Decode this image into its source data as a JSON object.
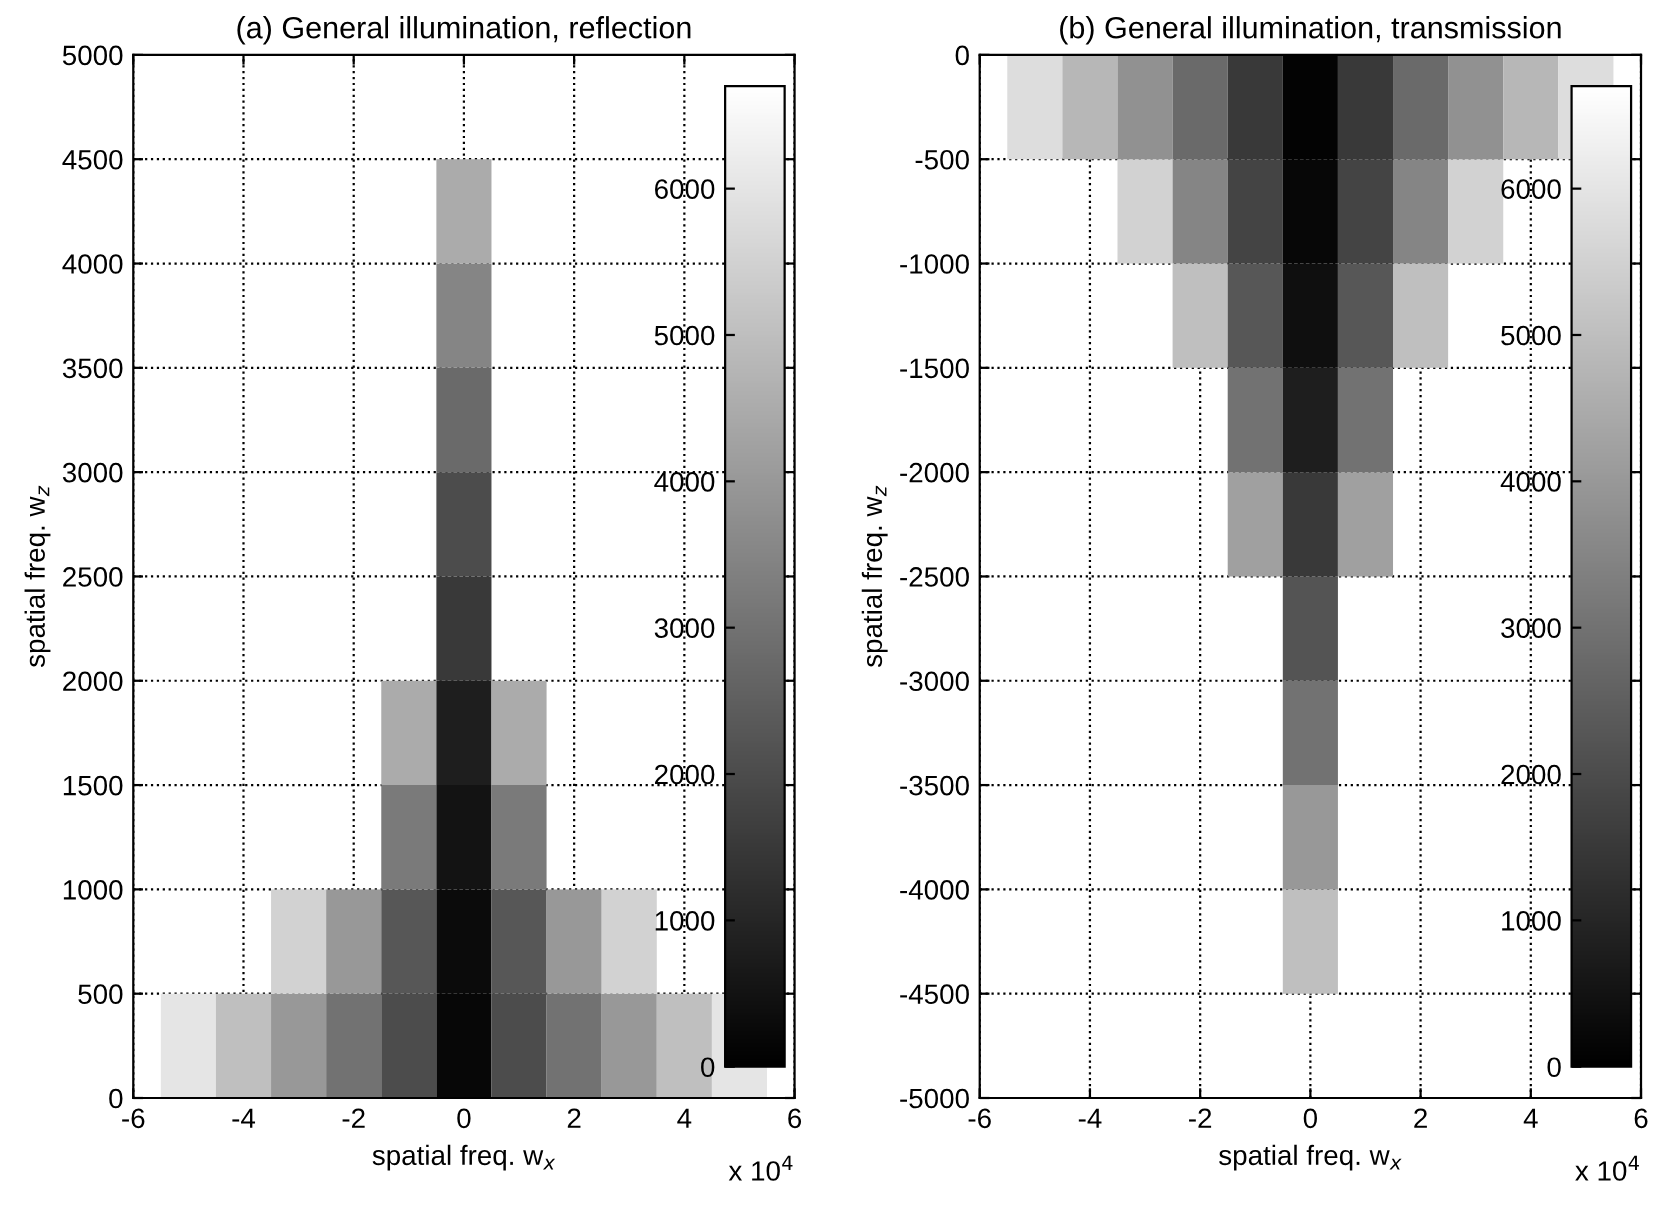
{
  "chart_data": [
    {
      "type": "heatmap",
      "title": "(a) General illumination, reflection",
      "xlabel": "spatial freq. w$_{x}$",
      "ylabel": "spatial freq. w$_{z}$",
      "annotations": [
        "x 10$^{4}$"
      ],
      "x": [
        -5,
        -4,
        -3,
        -2,
        -1,
        0,
        1,
        2,
        3,
        4,
        5
      ],
      "y": [
        4250,
        3750,
        3250,
        2750,
        2250,
        1750,
        1250,
        750,
        250
      ],
      "cells": [
        [
          null,
          null,
          null,
          null,
          null,
          4500,
          null,
          null,
          null,
          null,
          null
        ],
        [
          null,
          null,
          null,
          null,
          null,
          3500,
          null,
          null,
          null,
          null,
          null
        ],
        [
          null,
          null,
          null,
          null,
          null,
          2800,
          null,
          null,
          null,
          null,
          null
        ],
        [
          null,
          null,
          null,
          null,
          null,
          2000,
          null,
          null,
          null,
          null,
          null
        ],
        [
          null,
          null,
          null,
          null,
          null,
          1500,
          null,
          null,
          null,
          null,
          null
        ],
        [
          null,
          null,
          null,
          null,
          4500,
          800,
          4500,
          null,
          null,
          null,
          null
        ],
        [
          null,
          null,
          null,
          null,
          3200,
          500,
          3200,
          null,
          null,
          null,
          null
        ],
        [
          null,
          null,
          5500,
          4000,
          2300,
          300,
          2300,
          4000,
          5500,
          null,
          null
        ],
        [
          6000,
          5000,
          4000,
          3000,
          2000,
          200,
          2000,
          3000,
          4000,
          5000,
          6000
        ]
      ],
      "clim": [
        0,
        6700
      ],
      "cticks": [
        0,
        1000,
        2000,
        3000,
        4000,
        5000,
        6000
      ],
      "xlim": [
        -6,
        6
      ],
      "xticks": [
        -6,
        -4,
        -2,
        0,
        2,
        4,
        6
      ],
      "ylim": [
        0,
        5000
      ],
      "yticks": [
        0,
        500,
        1000,
        1500,
        2000,
        2500,
        3000,
        3500,
        4000,
        4500,
        5000
      ],
      "grid": true
    },
    {
      "type": "heatmap",
      "title": "(b) General illumination, transmission",
      "xlabel": "spatial freq. w$_{x}$",
      "ylabel": "spatial freq. w$_{z}$",
      "annotations": [
        "x 10$^{4}$"
      ],
      "x": [
        -5,
        -4,
        -3,
        -2,
        -1,
        0,
        1,
        2,
        3,
        4,
        5
      ],
      "y": [
        -250,
        -750,
        -1250,
        -1750,
        -2250,
        -2750,
        -3250,
        -3750,
        -4250
      ],
      "cells": [
        [
          5800,
          4800,
          3800,
          2800,
          1500,
          100,
          1500,
          2800,
          3800,
          4800,
          5800
        ],
        [
          null,
          null,
          5500,
          3500,
          1800,
          200,
          1800,
          3500,
          5500,
          null,
          null
        ],
        [
          null,
          null,
          null,
          5000,
          2300,
          400,
          2300,
          5000,
          null,
          null,
          null
        ],
        [
          null,
          null,
          null,
          null,
          3000,
          800,
          3000,
          null,
          null,
          null,
          null
        ],
        [
          null,
          null,
          null,
          null,
          4200,
          1500,
          4200,
          null,
          null,
          null,
          null
        ],
        [
          null,
          null,
          null,
          null,
          null,
          2200,
          null,
          null,
          null,
          null,
          null
        ],
        [
          null,
          null,
          null,
          null,
          null,
          3000,
          null,
          null,
          null,
          null,
          null
        ],
        [
          null,
          null,
          null,
          null,
          null,
          4000,
          null,
          null,
          null,
          null,
          null
        ],
        [
          null,
          null,
          null,
          null,
          null,
          5000,
          null,
          null,
          null,
          null,
          null
        ]
      ],
      "clim": [
        0,
        6700
      ],
      "cticks": [
        0,
        1000,
        2000,
        3000,
        4000,
        5000,
        6000
      ],
      "xlim": [
        -6,
        6
      ],
      "xticks": [
        -6,
        -4,
        -2,
        0,
        2,
        4,
        6
      ],
      "ylim": [
        -5000,
        0
      ],
      "yticks": [
        -5000,
        -4500,
        -4000,
        -3500,
        -3000,
        -2500,
        -2000,
        -1500,
        -1000,
        -500,
        0
      ],
      "grid": true
    }
  ]
}
